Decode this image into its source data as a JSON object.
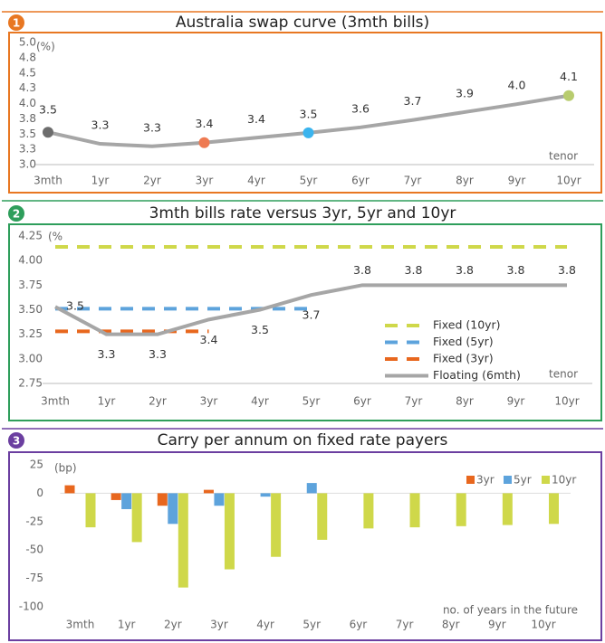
{
  "chart_data": [
    {
      "type": "line",
      "badge": "1",
      "title": "Australia swap curve (3mth bills)",
      "y_unit": "(%)",
      "x_label": "tenor",
      "categories": [
        "3mth",
        "1yr",
        "2yr",
        "3yr",
        "4yr",
        "5yr",
        "6yr",
        "7yr",
        "8yr",
        "9yr",
        "10yr"
      ],
      "series": [
        {
          "name": "Swap curve",
          "color": "#a6a6a6",
          "values": [
            3.53,
            3.34,
            3.3,
            3.36,
            3.44,
            3.52,
            3.61,
            3.73,
            3.86,
            3.99,
            4.13
          ],
          "value_labels": [
            "3.5",
            "3.3",
            "3.3",
            "3.4",
            "3.4",
            "3.5",
            "3.6",
            "3.7",
            "3.9",
            "4.0",
            "4.1"
          ],
          "marker_colors": [
            "#6d6d6d",
            null,
            null,
            "#ee7a52",
            null,
            "#3bb4ee",
            null,
            null,
            null,
            null,
            "#b8cc6e"
          ]
        }
      ],
      "ylim": [
        3,
        5
      ],
      "yticks": [
        {
          "value": 5,
          "label": "5.0"
        },
        {
          "value": 4.75,
          "label": "4.8"
        },
        4.5,
        {
          "value": 4.25,
          "label": "4.3"
        },
        {
          "value": 4,
          "label": "4.0"
        },
        {
          "value": 3.75,
          "label": "3.8"
        },
        3.5,
        {
          "value": 3.25,
          "label": "3.3"
        },
        {
          "value": 3,
          "label": "3.0"
        }
      ],
      "grid": false
    },
    {
      "type": "line",
      "badge": "2",
      "title": "3mth bills rate versus 3yr, 5yr and 10yr",
      "y_unit": "(%",
      "x_label": "tenor",
      "categories": [
        "3mth",
        "1yr",
        "2yr",
        "3yr",
        "4yr",
        "5yr",
        "6yr",
        "7yr",
        "8yr",
        "9yr",
        "10yr"
      ],
      "series": [
        {
          "name": "Fixed (10yr)",
          "color": "#cfd84a",
          "dashed": true,
          "values": [
            4.14,
            4.14,
            4.14,
            4.14,
            4.14,
            4.14,
            4.14,
            4.14,
            4.14,
            4.14,
            4.14
          ]
        },
        {
          "name": "Fixed (5yr)",
          "color": "#5da3dc",
          "dashed": true,
          "values": [
            3.51,
            3.51,
            3.51,
            3.51,
            3.51,
            3.51,
            null,
            null,
            null,
            null,
            null
          ]
        },
        {
          "name": "Fixed (3yr)",
          "color": "#e8671e",
          "dashed": true,
          "values": [
            3.28,
            3.28,
            3.28,
            3.28,
            null,
            null,
            null,
            null,
            null,
            null,
            null
          ]
        },
        {
          "name": "Floating (6mth)",
          "color": "#a6a6a6",
          "dashed": false,
          "values": [
            3.53,
            3.25,
            3.25,
            3.4,
            3.5,
            3.65,
            3.75,
            3.75,
            3.75,
            3.75,
            3.75
          ],
          "value_labels": [
            "3.5",
            "3.3",
            "3.3",
            "3.4",
            "3.5",
            "3.7",
            "3.8",
            "3.8",
            "3.8",
            "3.8",
            "3.8"
          ]
        }
      ],
      "ylim": [
        2.75,
        4.25
      ],
      "yticks": [
        4.25,
        {
          "value": 4,
          "label": "4.00"
        },
        3.75,
        {
          "value": 3.5,
          "label": "3.50"
        },
        3.25,
        {
          "value": 3,
          "label": "3.00"
        },
        2.75
      ],
      "legend": "lower right",
      "grid": false
    },
    {
      "type": "bar",
      "badge": "3",
      "title": "Carry per annum on fixed rate payers",
      "y_unit": "(bp)",
      "x_label": "no. of years in the future",
      "categories": [
        "3mth",
        "1yr",
        "2yr",
        "3yr",
        "4yr",
        "5yr",
        "6yr",
        "7yr",
        "8yr",
        "9yr",
        "10yr"
      ],
      "series": [
        {
          "name": "3yr",
          "color": "#e8671e",
          "values": [
            7,
            -6,
            -11,
            3,
            null,
            null,
            null,
            null,
            null,
            null,
            null
          ]
        },
        {
          "name": "5yr",
          "color": "#5da3dc",
          "values": [
            null,
            -14,
            -27,
            -11,
            -3,
            9,
            null,
            null,
            null,
            null,
            null
          ]
        },
        {
          "name": "10yr",
          "color": "#cfd84a",
          "values": [
            -30,
            -43,
            -83,
            -67,
            -56,
            -41,
            -31,
            -30,
            -29,
            -28,
            -27
          ]
        }
      ],
      "ylim": [
        -100,
        25
      ],
      "yticks": [
        25,
        0,
        -25,
        -50,
        -75,
        -100
      ],
      "legend": "upper right",
      "grid": false
    }
  ]
}
